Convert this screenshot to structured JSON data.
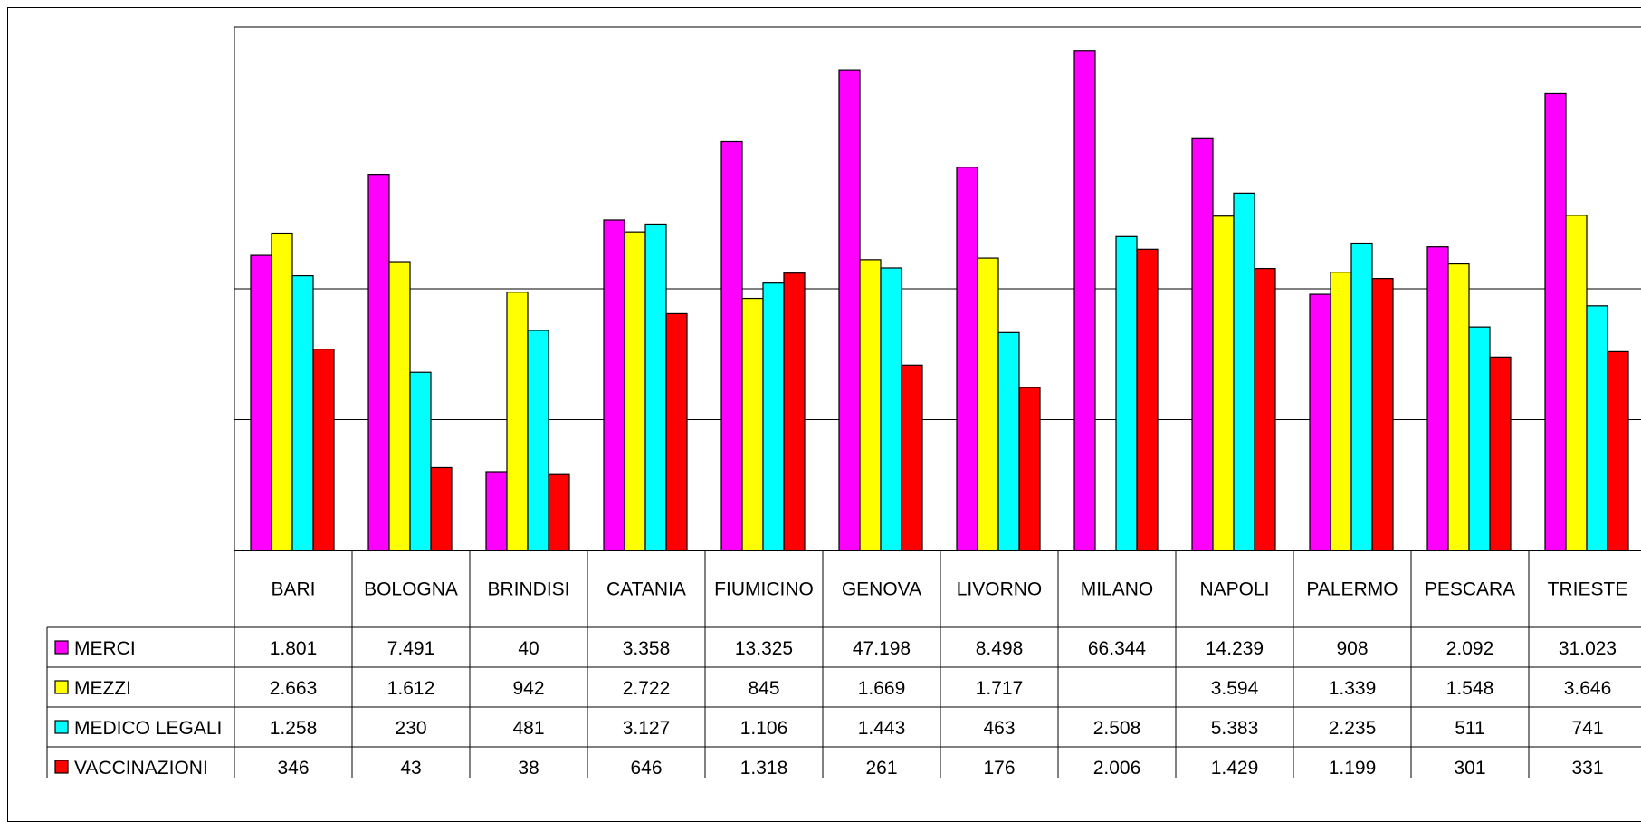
{
  "chart_data": {
    "type": "bar",
    "title": "",
    "xlabel": "",
    "ylabel": "",
    "y_scale": "log",
    "ylim": [
      10,
      100000
    ],
    "grid": true,
    "legend": "table rows below chart",
    "categories": [
      "BARI",
      "BOLOGNA",
      "BRINDISI",
      "CATANIA",
      "FIUMICINO",
      "GENOVA",
      "LIVORNO",
      "MILANO",
      "NAPOLI",
      "PALERMO",
      "PESCARA",
      "TRIESTE"
    ],
    "series": [
      {
        "name": "MERCI",
        "color": "#FF00FF",
        "values": [
          1801,
          7491,
          40,
          3358,
          13325,
          47198,
          8498,
          66344,
          14239,
          908,
          2092,
          31023
        ],
        "labels": [
          "1.801",
          "7.491",
          "40",
          "3.358",
          "13.325",
          "47.198",
          "8.498",
          "66.344",
          "14.239",
          "908",
          "2.092",
          "31.023"
        ]
      },
      {
        "name": "MEZZI",
        "color": "#FFFF00",
        "values": [
          2663,
          1612,
          942,
          2722,
          845,
          1669,
          1717,
          null,
          3594,
          1339,
          1548,
          3646
        ],
        "labels": [
          "2.663",
          "1.612",
          "942",
          "2.722",
          "845",
          "1.669",
          "1.717",
          "",
          "3.594",
          "1.339",
          "1.548",
          "3.646"
        ]
      },
      {
        "name": "MEDICO LEGALI",
        "color": "#00FFFF",
        "values": [
          1258,
          230,
          481,
          3127,
          1106,
          1443,
          463,
          2508,
          5383,
          2235,
          511,
          741
        ],
        "labels": [
          "1.258",
          "230",
          "481",
          "3.127",
          "1.106",
          "1.443",
          "463",
          "2.508",
          "5.383",
          "2.235",
          "511",
          "741"
        ]
      },
      {
        "name": "VACCINAZIONI",
        "color": "#FF0000",
        "values": [
          346,
          43,
          38,
          646,
          1318,
          261,
          176,
          2006,
          1429,
          1199,
          301,
          331
        ],
        "labels": [
          "346",
          "43",
          "38",
          "646",
          "1.318",
          "261",
          "176",
          "2.006",
          "1.429",
          "1.199",
          "301",
          "331"
        ]
      }
    ]
  }
}
